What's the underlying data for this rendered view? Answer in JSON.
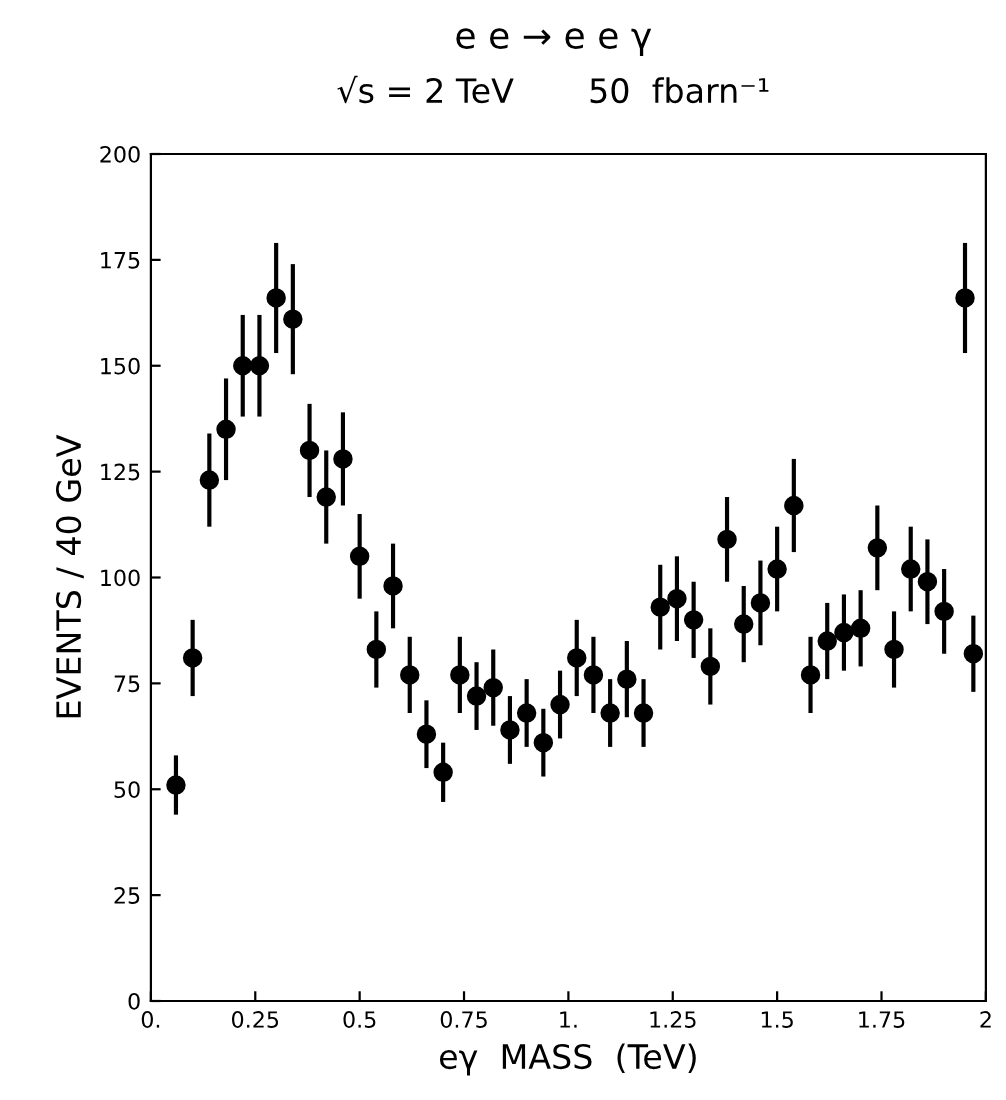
{
  "chart_data": {
    "type": "scatter",
    "title": "e e → e e γ",
    "subtitle": "√s = 2 TeV       50  fbarn⁻¹",
    "xlabel": "eγ  MASS  (TeV)",
    "ylabel": "EVENTS / 40 GeV",
    "x": [
      0.06,
      0.1,
      0.14,
      0.18,
      0.22,
      0.26,
      0.3,
      0.34,
      0.38,
      0.42,
      0.46,
      0.5,
      0.54,
      0.58,
      0.62,
      0.66,
      0.7,
      0.74,
      0.78,
      0.82,
      0.86,
      0.9,
      0.94,
      0.98,
      1.02,
      1.06,
      1.1,
      1.14,
      1.18,
      1.22,
      1.26,
      1.3,
      1.34,
      1.38,
      1.42,
      1.46,
      1.5,
      1.54,
      1.58,
      1.62,
      1.66,
      1.7,
      1.74,
      1.78,
      1.82,
      1.86,
      1.9,
      1.95,
      1.97
    ],
    "series": [
      {
        "color": "#000000",
        "values": [
          51,
          81,
          123,
          135,
          150,
          150,
          166,
          161,
          130,
          119,
          128,
          105,
          83,
          98,
          77,
          63,
          54,
          77,
          72,
          74,
          64,
          68,
          61,
          70,
          81,
          77,
          68,
          76,
          68,
          93,
          95,
          90,
          79,
          109,
          89,
          94,
          102,
          117,
          77,
          85,
          87,
          88,
          107,
          83,
          102,
          99,
          92,
          166,
          82
        ],
        "errors": [
          7,
          9,
          11,
          12,
          12,
          12,
          13,
          13,
          11,
          11,
          11,
          10,
          9,
          10,
          9,
          8,
          7,
          9,
          8,
          9,
          8,
          8,
          8,
          8,
          9,
          9,
          8,
          9,
          8,
          10,
          10,
          9,
          9,
          10,
          9,
          10,
          10,
          11,
          9,
          9,
          9,
          9,
          10,
          9,
          10,
          10,
          10,
          13,
          9
        ]
      }
    ],
    "xlim": [
      0,
      2
    ],
    "ylim": [
      0,
      200
    ],
    "xticks": [
      {
        "value": 0,
        "label": "0."
      },
      0.25,
      0.5,
      0.75,
      {
        "value": 1,
        "label": "1."
      },
      1.25,
      1.5,
      1.75,
      2
    ],
    "yticks": [
      0,
      25,
      50,
      75,
      100,
      125,
      150,
      175,
      200
    ],
    "marker": "circle",
    "grid": false,
    "legend": false
  }
}
